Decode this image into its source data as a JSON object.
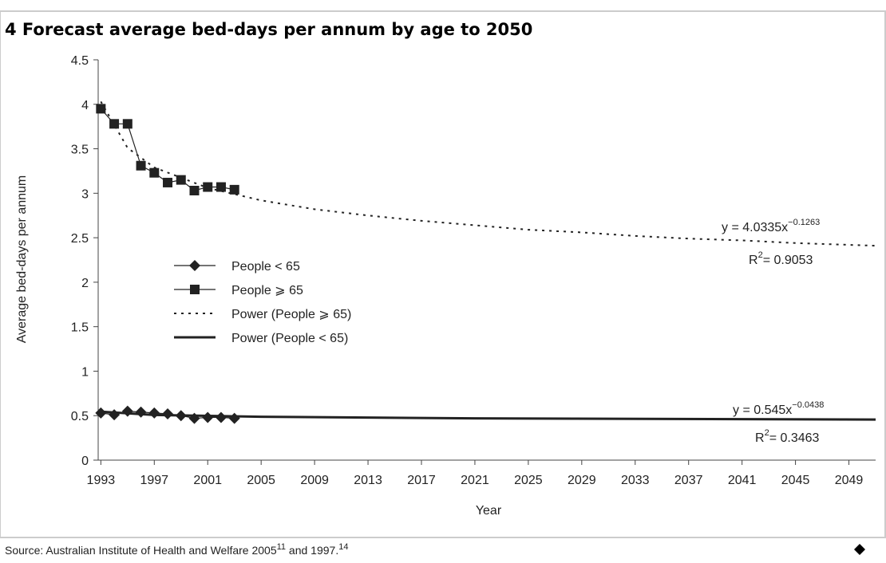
{
  "chart_data": {
    "type": "line",
    "title": "4  Forecast average bed-days per annum by age to 2050",
    "x_label": "Year",
    "y_label": "Average bed-days per annum",
    "xlim": [
      1992.8,
      2051
    ],
    "xticks": [
      1993,
      1997,
      2001,
      2005,
      2009,
      2013,
      2017,
      2021,
      2025,
      2029,
      2033,
      2037,
      2041,
      2045,
      2049
    ],
    "ylim": [
      0,
      4.5
    ],
    "yticks": [
      0,
      0.5,
      1,
      1.5,
      2,
      2.5,
      3,
      3.5,
      4,
      4.5
    ],
    "series": [
      {
        "name": "People < 65",
        "color": "#222222",
        "marker": "diamond",
        "dash": "solid",
        "x": [
          1993,
          1994,
          1995,
          1996,
          1997,
          1998,
          1999,
          2000,
          2001,
          2002,
          2003
        ],
        "values": [
          0.53,
          0.51,
          0.55,
          0.54,
          0.53,
          0.52,
          0.5,
          0.47,
          0.48,
          0.48,
          0.47
        ]
      },
      {
        "name": "People ⩾ 65",
        "color": "#222222",
        "marker": "square",
        "dash": "solid",
        "x": [
          1993,
          1994,
          1995,
          1996,
          1997,
          1998,
          1999,
          2000,
          2001,
          2002,
          2003
        ],
        "values": [
          3.95,
          3.78,
          3.78,
          3.31,
          3.23,
          3.12,
          3.15,
          3.03,
          3.07,
          3.07,
          3.04
        ]
      },
      {
        "name": "Power (People ⩾ 65)",
        "color": "#222222",
        "marker": "none",
        "dash": "dotted",
        "x": [
          1993,
          1995,
          1997,
          2001,
          2005,
          2009,
          2013,
          2017,
          2021,
          2025,
          2029,
          2033,
          2037,
          2041,
          2045,
          2051
        ],
        "values": [
          4.03,
          3.51,
          3.29,
          3.06,
          2.92,
          2.82,
          2.75,
          2.69,
          2.64,
          2.59,
          2.56,
          2.52,
          2.49,
          2.47,
          2.44,
          2.41
        ]
      },
      {
        "name": "Power (People < 65)",
        "color": "#222222",
        "marker": "none",
        "dash": "thick",
        "x": [
          1993,
          1997,
          2005,
          2021,
          2051
        ],
        "values": [
          0.545,
          0.508,
          0.487,
          0.47,
          0.456
        ]
      }
    ],
    "annotations": [
      {
        "text": "y = 4.0335x",
        "sup": "−0.1263"
      },
      {
        "text": "R",
        "sup": "2",
        "after": "= 0.9053"
      },
      {
        "text": "y = 0.545x",
        "sup": "−0.0438"
      },
      {
        "text": "R",
        "sup": "2",
        "after": "= 0.3463"
      }
    ]
  },
  "source": {
    "text": "Source: Australian Institute of Health and Welfare 2005",
    "sup1": "11",
    "mid": " and 1997.",
    "sup2": "14"
  }
}
